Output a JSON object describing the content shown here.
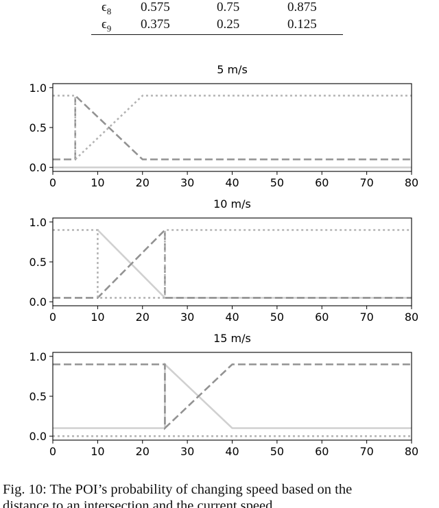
{
  "table": {
    "rows": [
      {
        "label": "ε8",
        "sub": "8",
        "values": [
          "0.575",
          "0.75",
          "0.875"
        ]
      },
      {
        "label": "ε9",
        "sub": "9",
        "values": [
          "0.375",
          "0.25",
          "0.125"
        ]
      }
    ]
  },
  "caption": {
    "line1": "Fig. 10: The POI’s probability of changing speed based on the",
    "line2": "distance to an intersection and the current speed."
  },
  "chart_data": [
    {
      "type": "line",
      "title": "5 m/s",
      "xlim": [
        0,
        80
      ],
      "ylim": [
        -0.05,
        1.05
      ],
      "xticks": [
        0,
        10,
        20,
        30,
        40,
        50,
        60,
        70,
        80
      ],
      "yticks": [
        0.0,
        0.5,
        1.0
      ],
      "ytick_labels": [
        "0.0",
        "0.5",
        "1.0"
      ],
      "series": [
        {
          "style": "solid",
          "color": "#d0d0d0",
          "x": [
            0,
            80
          ],
          "y": [
            0.0,
            0.0
          ]
        },
        {
          "style": "dashed",
          "color": "#929292",
          "x": [
            0,
            5,
            5,
            20,
            80
          ],
          "y": [
            0.1,
            0.1,
            0.9,
            0.1,
            0.1
          ]
        },
        {
          "style": "dotted",
          "color": "#b3b3b3",
          "x": [
            0,
            5,
            5,
            20,
            80
          ],
          "y": [
            0.9,
            0.9,
            0.1,
            0.9,
            0.9
          ]
        }
      ]
    },
    {
      "type": "line",
      "title": "10 m/s",
      "xlim": [
        0,
        80
      ],
      "ylim": [
        -0.05,
        1.05
      ],
      "xticks": [
        0,
        10,
        20,
        30,
        40,
        50,
        60,
        70,
        80
      ],
      "yticks": [
        0.0,
        0.5,
        1.0
      ],
      "ytick_labels": [
        "0.0",
        "0.5",
        "1.0"
      ],
      "series": [
        {
          "style": "solid",
          "color": "#d0d0d0",
          "x": [
            10,
            25,
            80
          ],
          "y": [
            0.9,
            0.05,
            0.05
          ]
        },
        {
          "style": "dashed",
          "color": "#929292",
          "x": [
            0,
            10,
            25,
            25,
            80
          ],
          "y": [
            0.05,
            0.05,
            0.9,
            0.05,
            0.05
          ]
        },
        {
          "style": "dotted",
          "color": "#b3b3b3",
          "x": [
            0,
            10,
            10,
            25,
            25,
            80
          ],
          "y": [
            0.9,
            0.9,
            0.05,
            0.05,
            0.9,
            0.9
          ]
        }
      ]
    },
    {
      "type": "line",
      "title": "15 m/s",
      "xlim": [
        0,
        80
      ],
      "ylim": [
        -0.05,
        1.05
      ],
      "xticks": [
        0,
        10,
        20,
        30,
        40,
        50,
        60,
        70,
        80
      ],
      "yticks": [
        0.0,
        0.5,
        1.0
      ],
      "ytick_labels": [
        "0.0",
        "0.5",
        "1.0"
      ],
      "series": [
        {
          "style": "solid",
          "color": "#d0d0d0",
          "x": [
            0,
            25,
            25,
            40,
            80
          ],
          "y": [
            0.1,
            0.1,
            0.9,
            0.1,
            0.1
          ]
        },
        {
          "style": "dashed",
          "color": "#929292",
          "x": [
            0,
            25,
            25,
            40,
            80
          ],
          "y": [
            0.9,
            0.9,
            0.1,
            0.9,
            0.9
          ]
        },
        {
          "style": "dotted",
          "color": "#b3b3b3",
          "x": [
            0,
            80
          ],
          "y": [
            0.0,
            0.0
          ]
        }
      ]
    }
  ]
}
